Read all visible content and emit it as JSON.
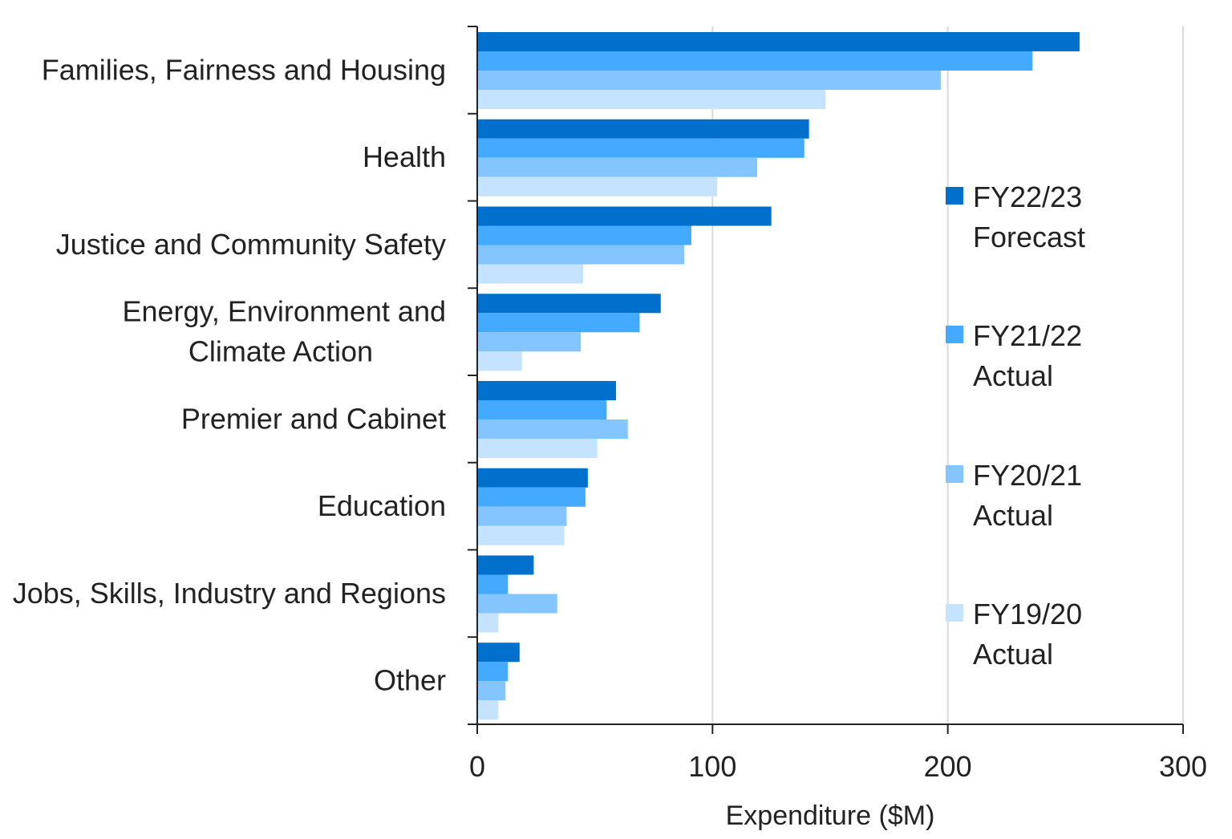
{
  "chart_data": {
    "type": "bar",
    "orientation": "horizontal",
    "categories": [
      [
        "Families, Fairness and Housing"
      ],
      [
        "Health"
      ],
      [
        "Justice and Community Safety"
      ],
      [
        "Energy, Environment and",
        "Climate Action"
      ],
      [
        "Premier and Cabinet"
      ],
      [
        "Education"
      ],
      [
        "Jobs, Skills, Industry and Regions"
      ],
      [
        "Other"
      ]
    ],
    "series": [
      {
        "name": [
          "FY22/23",
          "Forecast"
        ],
        "color": "#0070CC",
        "values": [
          256,
          141,
          125,
          78,
          59,
          47,
          24,
          18
        ]
      },
      {
        "name": [
          "FY21/22",
          "Actual"
        ],
        "color": "#44AAFF",
        "values": [
          236,
          139,
          91,
          69,
          55,
          46,
          13,
          13
        ]
      },
      {
        "name": [
          "FY20/21",
          "Actual"
        ],
        "color": "#85C5FF",
        "values": [
          197,
          119,
          88,
          44,
          64,
          38,
          34,
          12
        ]
      },
      {
        "name": [
          "FY19/20",
          "Actual"
        ],
        "color": "#C5E3FF",
        "values": [
          148,
          102,
          45,
          19,
          51,
          37,
          9,
          9
        ]
      }
    ],
    "xlabel": "Expenditure ($M)",
    "xlim": [
      0,
      300
    ],
    "xticks": [
      0,
      100,
      200,
      300
    ],
    "grid": "vertical",
    "legend_position": "right"
  }
}
